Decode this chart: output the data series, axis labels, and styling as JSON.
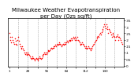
{
  "title": "Milwaukee Weather Evapotranspiration\nper Day (Ozs sq/ft)",
  "title_fontsize": 5.0,
  "bg_color": "#ffffff",
  "dot_color": "#ff0000",
  "dot_size": 1.2,
  "grid_color": "#888888",
  "ylim": [
    -0.01,
    0.37
  ],
  "yticks": [
    0.0,
    0.05,
    0.1,
    0.15,
    0.2,
    0.25,
    0.3,
    0.35
  ],
  "ytick_labels": [
    "0",
    ".05",
    ".1",
    ".15",
    ".2",
    ".25",
    ".3",
    ".35"
  ],
  "x_values": [
    1,
    2,
    3,
    4,
    5,
    6,
    7,
    8,
    9,
    10,
    11,
    12,
    13,
    14,
    15,
    16,
    17,
    18,
    19,
    20,
    21,
    22,
    23,
    24,
    25,
    26,
    27,
    28,
    29,
    30,
    31,
    32,
    33,
    34,
    35,
    36,
    37,
    38,
    39,
    40,
    41,
    42,
    43,
    44,
    45,
    46,
    47,
    48,
    49,
    50,
    51,
    52,
    53,
    54,
    55,
    56,
    57,
    58,
    59,
    60,
    61,
    62,
    63,
    64,
    65,
    66,
    67,
    68,
    69,
    70,
    71,
    72,
    73,
    74,
    75,
    76,
    77,
    78,
    79,
    80,
    81,
    82,
    83,
    84,
    85,
    86,
    87,
    88,
    89,
    90,
    91,
    92,
    93,
    94,
    95,
    96,
    97,
    98,
    99,
    100,
    101,
    102,
    103,
    104,
    105,
    106,
    107,
    108,
    109,
    110,
    111,
    112,
    113,
    114,
    115,
    116,
    117,
    118,
    119,
    120,
    121,
    122,
    123,
    124,
    125,
    126,
    127,
    128,
    129,
    130,
    131,
    132,
    133,
    134,
    135,
    136,
    137,
    138,
    139,
    140,
    141,
    142,
    143,
    144,
    145,
    146,
    147,
    148,
    149,
    150,
    151,
    152,
    153,
    154,
    155,
    156,
    157,
    158,
    159,
    160,
    161,
    162,
    163,
    164,
    165
  ],
  "y_values": [
    0.25,
    0.22,
    0.2,
    0.18,
    0.22,
    0.2,
    0.18,
    0.17,
    0.21,
    0.19,
    0.17,
    0.16,
    0.2,
    0.22,
    0.19,
    0.17,
    0.15,
    0.13,
    0.14,
    0.15,
    0.13,
    0.12,
    0.1,
    0.09,
    0.1,
    0.09,
    0.08,
    0.1,
    0.09,
    0.08,
    0.07,
    0.06,
    0.05,
    0.06,
    0.07,
    0.06,
    0.05,
    0.04,
    0.05,
    0.06,
    0.05,
    0.04,
    0.05,
    0.06,
    0.07,
    0.06,
    0.05,
    0.06,
    0.07,
    0.08,
    0.09,
    0.1,
    0.09,
    0.1,
    0.09,
    0.1,
    0.11,
    0.12,
    0.11,
    0.12,
    0.13,
    0.14,
    0.13,
    0.14,
    0.15,
    0.14,
    0.15,
    0.16,
    0.15,
    0.16,
    0.17,
    0.16,
    0.17,
    0.18,
    0.17,
    0.16,
    0.15,
    0.16,
    0.17,
    0.16,
    0.17,
    0.18,
    0.17,
    0.18,
    0.19,
    0.18,
    0.19,
    0.2,
    0.19,
    0.2,
    0.21,
    0.2,
    0.21,
    0.22,
    0.21,
    0.2,
    0.22,
    0.21,
    0.2,
    0.22,
    0.2,
    0.19,
    0.18,
    0.17,
    0.16,
    0.17,
    0.18,
    0.17,
    0.16,
    0.15,
    0.14,
    0.15,
    0.14,
    0.13,
    0.14,
    0.15,
    0.14,
    0.13,
    0.12,
    0.13,
    0.14,
    0.15,
    0.16,
    0.17,
    0.18,
    0.19,
    0.2,
    0.21,
    0.22,
    0.23,
    0.22,
    0.24,
    0.25,
    0.24,
    0.26,
    0.27,
    0.28,
    0.3,
    0.32,
    0.31,
    0.29,
    0.32,
    0.3,
    0.28,
    0.25,
    0.28,
    0.27,
    0.26,
    0.24,
    0.22,
    0.24,
    0.25,
    0.23,
    0.22,
    0.2,
    0.22,
    0.23,
    0.24,
    0.22,
    0.2,
    0.22,
    0.21,
    0.2,
    0.18,
    0.17
  ],
  "vgrid_positions": [
    14,
    28,
    42,
    56,
    70,
    84,
    98,
    112,
    126,
    140,
    154
  ],
  "xtick_positions": [
    1,
    14,
    28,
    42,
    56,
    70,
    84,
    98,
    112,
    126,
    140,
    154
  ],
  "tick_fontsize": 3.0,
  "spine_linewidth": 0.5
}
